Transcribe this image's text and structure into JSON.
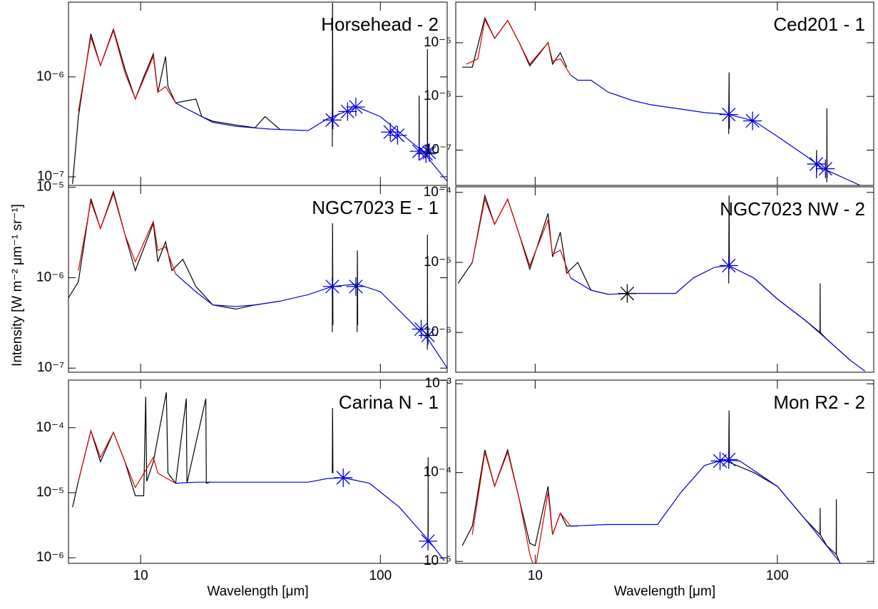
{
  "ylabel": "Intensity [W m⁻² μm⁻¹ sr⁻¹]",
  "chart_data": [
    {
      "type": "line",
      "title": "Horsehead - 2",
      "xscale": "log",
      "yscale": "log",
      "xlim": [
        5,
        190
      ],
      "ylim": [
        8.2e-08,
        5.6e-06
      ],
      "xticks": [
        10,
        100
      ],
      "yticks": [
        {
          "value": 1e-07,
          "label": "10⁻⁷"
        },
        {
          "value": 1e-06,
          "label": "10⁻⁶"
        }
      ],
      "series": [
        {
          "color": "#000000",
          "x": [
            5.2,
            5.5,
            6.2,
            6.8,
            7.7,
            8.6,
            9.5,
            10.3,
            11.3,
            11.8,
            12.7,
            13,
            14,
            17,
            18,
            20,
            25,
            30,
            33,
            38,
            null,
            63,
            63.2,
            63.4,
            null,
            145,
            145.2,
            145.4,
            null,
            157,
            157.2,
            157.4
          ],
          "values": [
            8.5e-08,
            4e-07,
            2.7e-06,
            1.3e-06,
            3e-06,
            1.2e-06,
            6e-07,
            1e-06,
            1.7e-06,
            7e-07,
            1.6e-06,
            8e-07,
            5.5e-07,
            6e-07,
            4e-07,
            3.6e-07,
            3.3e-07,
            3.1e-07,
            4e-07,
            3e-07,
            null,
            2e-07,
            5.5e-06,
            3e-07,
            null,
            1.5e-07,
            6.5e-07,
            1.6e-07,
            null,
            1.6e-07,
            1.9e-06,
            1.7e-07
          ]
        },
        {
          "color": "#dd0000",
          "x": [
            5.5,
            6.2,
            6.8,
            7.7,
            8.6,
            9.5,
            11.3,
            11.8,
            12.7,
            14
          ],
          "values": [
            4.5e-07,
            2.5e-06,
            1.3e-06,
            2.9e-06,
            1.1e-06,
            6e-07,
            1.6e-06,
            7e-07,
            8e-07,
            5.5e-07
          ]
        },
        {
          "color": "#0000dd",
          "x": [
            14,
            15,
            17,
            20,
            25,
            35,
            50,
            60,
            80,
            100,
            120,
            150,
            190
          ],
          "values": [
            5.5e-07,
            5e-07,
            4.3e-07,
            3.5e-07,
            3.2e-07,
            3e-07,
            2.9e-07,
            3.8e-07,
            5e-07,
            4e-07,
            2.8e-07,
            1.8e-07,
            9e-08
          ]
        },
        {
          "color": "#0000dd",
          "marker": "star",
          "x": [
            63,
            73,
            79,
            110,
            118,
            145,
            155,
            160
          ],
          "values": [
            3.7e-07,
            4.5e-07,
            5e-07,
            2.8e-07,
            2.6e-07,
            1.8e-07,
            1.7e-07,
            1.75e-07
          ]
        }
      ]
    },
    {
      "type": "line",
      "title": "Ced201 - 1",
      "xscale": "log",
      "yscale": "log",
      "xlim": [
        4.7,
        250
      ],
      "ylim": [
        2.2e-08,
        5.7e-05
      ],
      "xticks": [
        10,
        100
      ],
      "yticks": [
        {
          "value": 1e-07,
          "label": "10⁻⁷"
        },
        {
          "value": 1e-06,
          "label": "10⁻⁶"
        },
        {
          "value": 1e-05,
          "label": "10⁻⁵"
        }
      ],
      "series": [
        {
          "color": "#000000",
          "x": [
            5,
            5.5,
            6.2,
            6.8,
            7.7,
            8.6,
            9.5,
            11.3,
            11.8,
            12.7,
            13.5,
            null,
            63,
            63.2,
            63.4,
            null,
            145,
            145.2,
            145.4,
            null,
            160,
            160.2,
            160.4
          ],
          "values": [
            3.5e-06,
            3.5e-06,
            2.9e-05,
            1.2e-05,
            2.6e-05,
            1e-05,
            3.7e-06,
            1e-05,
            4e-06,
            6.5e-06,
            3.5e-06,
            null,
            2e-07,
            2.8e-06,
            2.5e-07,
            null,
            3e-08,
            1e-07,
            4e-08,
            null,
            2.5e-08,
            6e-07,
            3e-08
          ]
        },
        {
          "color": "#dd0000",
          "x": [
            5.2,
            5.8,
            6.2,
            6.8,
            7.7,
            8.6,
            9.5,
            11.3,
            11.8,
            12.7,
            14
          ],
          "values": [
            4e-06,
            5e-06,
            2.7e-05,
            1.2e-05,
            2.6e-05,
            1e-05,
            4e-06,
            1e-05,
            4.5e-06,
            5e-06,
            2.5e-06
          ]
        },
        {
          "color": "#0000dd",
          "x": [
            14,
            15,
            17,
            20,
            25,
            30,
            38,
            50,
            63,
            80,
            100,
            130,
            155,
            220
          ],
          "values": [
            2.5e-06,
            2e-06,
            2e-06,
            1.2e-06,
            8.5e-07,
            7e-07,
            6e-07,
            5e-07,
            4.6e-07,
            3.5e-07,
            1.8e-07,
            8e-08,
            4.5e-08,
            2.2e-08
          ]
        },
        {
          "color": "#0000dd",
          "marker": "star",
          "x": [
            63,
            79,
            145,
            158
          ],
          "values": [
            4.6e-07,
            3.5e-07,
            5.5e-08,
            4.5e-08
          ]
        }
      ]
    },
    {
      "type": "line",
      "title": "NGC7023 E - 1",
      "xscale": "log",
      "yscale": "log",
      "xlim": [
        5,
        190
      ],
      "ylim": [
        9e-08,
        1.05e-05
      ],
      "xticks": [
        10,
        100
      ],
      "yticks": [
        {
          "value": 1e-07,
          "label": "10⁻⁷"
        },
        {
          "value": 1e-06,
          "label": "10⁻⁶"
        },
        {
          "value": 1e-05,
          "label": "10⁻⁵"
        }
      ],
      "series": [
        {
          "color": "#000000",
          "x": [
            5,
            5.5,
            6.2,
            6.8,
            7.7,
            8.6,
            9.5,
            11.3,
            11.8,
            12.7,
            13.5,
            15,
            17,
            20,
            25,
            30,
            38,
            null,
            63,
            63.2,
            63.4,
            null,
            80,
            80.2,
            80.4,
            null,
            157,
            157.2,
            157.4
          ],
          "values": [
            6e-07,
            9e-07,
            7.5e-06,
            3.5e-06,
            9e-06,
            3e-06,
            1.2e-06,
            4e-06,
            1.5e-06,
            2.5e-06,
            1.2e-06,
            1.6e-06,
            8e-07,
            5e-07,
            4.5e-07,
            5e-07,
            5.5e-07,
            null,
            2.5e-07,
            4e-06,
            3e-07,
            null,
            2.5e-07,
            2e-06,
            3e-07,
            null,
            1.6e-07,
            3e-06,
            1.8e-07
          ]
        },
        {
          "color": "#dd0000",
          "x": [
            5.5,
            6.2,
            6.8,
            7.7,
            8.6,
            9.5,
            11.3,
            11.8,
            12.7,
            14
          ],
          "values": [
            1.2e-06,
            7e-06,
            3.5e-06,
            8.5e-06,
            3e-06,
            1.5e-06,
            4.2e-06,
            2e-06,
            2.2e-06,
            1.1e-06
          ]
        },
        {
          "color": "#0000dd",
          "x": [
            14,
            17,
            20,
            25,
            30,
            38,
            50,
            63,
            80,
            100,
            130,
            160,
            190
          ],
          "values": [
            1.1e-06,
            7e-07,
            5e-07,
            4.8e-07,
            5e-07,
            5.5e-07,
            6.5e-07,
            8e-07,
            8.5e-07,
            7e-07,
            3.5e-07,
            2e-07,
            1e-07
          ]
        },
        {
          "color": "#0000dd",
          "marker": "star",
          "x": [
            63,
            79,
            148,
            158
          ],
          "values": [
            8e-07,
            8e-07,
            2.7e-07,
            2.3e-07
          ]
        }
      ]
    },
    {
      "type": "line",
      "title": "NGC7023 NW - 2",
      "xscale": "log",
      "yscale": "log",
      "xlim": [
        4.7,
        250
      ],
      "ylim": [
        2.7e-07,
        0.00012
      ],
      "xticks": [
        10,
        100
      ],
      "yticks": [
        {
          "value": 1e-06,
          "label": "10⁻⁶"
        },
        {
          "value": 1e-05,
          "label": "10⁻⁵"
        },
        {
          "value": 0.0001,
          "label": "10⁻⁴"
        }
      ],
      "series": [
        {
          "color": "#000000",
          "x": [
            4.8,
            5.5,
            6.2,
            6.8,
            7.7,
            8.6,
            9.5,
            11.3,
            11.8,
            12.7,
            13.5,
            15,
            17,
            20,
            null,
            63,
            63.2,
            63.4,
            null,
            80,
            100,
            130,
            150,
            150.2,
            150.4,
            160,
            200
          ],
          "values": [
            5e-06,
            1e-05,
            9e-05,
            3.5e-05,
            8e-05,
            2.5e-05,
            8e-06,
            5e-05,
            1.2e-05,
            2.7e-05,
            7e-06,
            1e-05,
            4e-06,
            3.5e-06,
            null,
            5e-06,
            9e-05,
            8e-06,
            null,
            6e-06,
            3e-06,
            1.5e-06,
            1e-06,
            5e-06,
            1e-06,
            8e-07,
            4e-07
          ]
        },
        {
          "color": "#dd0000",
          "x": [
            5.5,
            6.2,
            6.8,
            7.7,
            8.6,
            9.5,
            11.3,
            11.8,
            12.7,
            14
          ],
          "values": [
            1e-05,
            8e-05,
            3.5e-05,
            8e-05,
            2.5e-05,
            9e-06,
            4e-05,
            1.3e-05,
            1.5e-05,
            6e-06
          ]
        },
        {
          "color": "#0000dd",
          "x": [
            14,
            17,
            20,
            25,
            38,
            45,
            55,
            63,
            80,
            100,
            130,
            160,
            200,
            230
          ],
          "values": [
            6e-06,
            4e-06,
            3.5e-06,
            3.6e-06,
            3.6e-06,
            6e-06,
            8.5e-06,
            9e-06,
            6e-06,
            3e-06,
            1.5e-06,
            8e-07,
            4e-07,
            2.8e-07
          ]
        },
        {
          "color": "#0000dd",
          "marker": "star",
          "x": [
            63
          ],
          "values": [
            9e-06
          ]
        },
        {
          "color": "#000000",
          "marker": "star",
          "x": [
            24
          ],
          "values": [
            3.6e-06
          ]
        }
      ]
    },
    {
      "type": "line",
      "title": "Carina N - 1",
      "xscale": "log",
      "yscale": "log",
      "xlim": [
        5,
        190
      ],
      "ylim": [
        8.2e-07,
        0.00054
      ],
      "xticks": [
        10,
        100
      ],
      "xlabel": "Wavelength [μm]",
      "yticks": [
        {
          "value": 1e-06,
          "label": "10⁻⁶"
        },
        {
          "value": 1e-05,
          "label": "10⁻⁵"
        },
        {
          "value": 0.0001,
          "label": "10⁻⁴"
        }
      ],
      "series": [
        {
          "color": "#000000",
          "x": [
            5.2,
            5.5,
            6.2,
            6.8,
            7.7,
            8.6,
            9.5,
            10.3,
            10.5,
            10.6,
            11.3,
            12.8,
            13,
            14,
            15.5,
            15.6,
            18.7,
            18.8,
            19.5,
            null,
            63,
            63.2,
            63.4,
            null,
            158,
            158.2,
            158.4
          ],
          "values": [
            6e-06,
            1.5e-05,
            9e-05,
            3e-05,
            8.5e-05,
            3e-05,
            9e-06,
            9e-06,
            0.0003,
            1.5e-05,
            3e-05,
            0.00035,
            2e-05,
            1.4e-05,
            0.00028,
            1.4e-05,
            0.00028,
            1.4e-05,
            1.45e-05,
            null,
            2e-05,
            0.0002,
            2e-05,
            null,
            2e-06,
            3.5e-05,
            2e-06
          ]
        },
        {
          "color": "#dd0000",
          "x": [
            5.5,
            6.2,
            6.8,
            7.7,
            8.6,
            9.5,
            11.3,
            11.8,
            12.7,
            14
          ],
          "values": [
            1.5e-05,
            9e-05,
            3.5e-05,
            8.5e-05,
            3e-05,
            1.2e-05,
            3.5e-05,
            2e-05,
            1.7e-05,
            1.4e-05
          ]
        },
        {
          "color": "#0000dd",
          "x": [
            14,
            17,
            20,
            30,
            50,
            60,
            70,
            90,
            120,
            160,
            185
          ],
          "values": [
            1.4e-05,
            1.45e-05,
            1.45e-05,
            1.45e-05,
            1.45e-05,
            1.65e-05,
            1.7e-05,
            1.4e-05,
            6e-06,
            1.8e-06,
            9e-07
          ]
        },
        {
          "color": "#0000dd",
          "marker": "star",
          "x": [
            70,
            158
          ],
          "values": [
            1.7e-05,
            1.8e-06
          ]
        }
      ]
    },
    {
      "type": "line",
      "title": "Mon R2 - 2",
      "xscale": "log",
      "yscale": "log",
      "xlim": [
        4.7,
        250
      ],
      "ylim": [
        9.5e-06,
        0.0011
      ],
      "xticks": [
        10,
        100
      ],
      "xlabel": "Wavelength [μm]",
      "yticks": [
        {
          "value": 1e-05,
          "label": "10⁻⁵"
        },
        {
          "value": 0.0001,
          "label": "10⁻⁴"
        },
        {
          "value": 0.001,
          "label": "10⁻³"
        }
      ],
      "series": [
        {
          "color": "#000000",
          "x": [
            5,
            5.5,
            6.2,
            6.8,
            7.7,
            8.6,
            9.5,
            10,
            11.3,
            11.8,
            12.7,
            13.5,
            15,
            null,
            60,
            63,
            63.2,
            63.4,
            80,
            100,
            130,
            150,
            150.2,
            150.4,
            160,
            175,
            175.2,
            175.4,
            190
          ],
          "values": [
            1.5e-05,
            2.5e-05,
            0.00018,
            7e-05,
            0.00018,
            5e-05,
            1.6e-05,
            1.5e-05,
            7e-05,
            2e-05,
            3.5e-05,
            2.5e-05,
            2.5e-05,
            null,
            0.00014,
            0.00013,
            0.0005,
            0.00013,
            0.0001,
            7e-05,
            3e-05,
            2e-05,
            4e-05,
            2e-05,
            1.5e-05,
            1.2e-05,
            5e-05,
            1.2e-05,
            7e-06
          ]
        },
        {
          "color": "#dd0000",
          "x": [
            5.5,
            6.2,
            6.8,
            7.7,
            8.6,
            9.5,
            10,
            11.3,
            11.8,
            12.7,
            14
          ],
          "values": [
            2e-05,
            0.00017,
            7e-05,
            0.00017,
            5e-05,
            1.2e-05,
            8e-06,
            6e-05,
            2e-05,
            3.5e-05,
            2.5e-05
          ]
        },
        {
          "color": "#0000dd",
          "x": [
            14,
            20,
            32,
            40,
            50,
            60,
            70,
            100,
            130,
            180,
            200
          ],
          "values": [
            2.5e-05,
            2.6e-05,
            2.6e-05,
            6e-05,
            0.00012,
            0.00014,
            0.000135,
            7e-05,
            3e-05,
            1e-05,
            6e-06
          ]
        },
        {
          "color": "#0000dd",
          "marker": "star",
          "x": [
            58,
            63
          ],
          "values": [
            0.000135,
            0.00014
          ]
        }
      ]
    }
  ]
}
